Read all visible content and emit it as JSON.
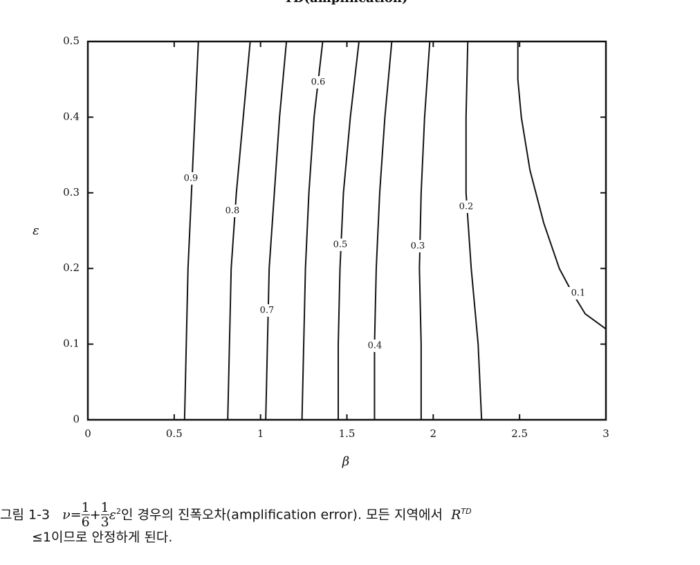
{
  "chart_data": {
    "type": "contour",
    "title": "TD(amplification)",
    "xlabel": "β",
    "ylabel": "ε",
    "xlim": [
      0,
      3
    ],
    "xticks": [
      0,
      0.5,
      1,
      1.5,
      2,
      2.5,
      3
    ],
    "ylim": [
      0,
      0.5
    ],
    "yticks": [
      0,
      0.1,
      0.2,
      0.3,
      0.4,
      0.5
    ],
    "color": "#111111",
    "series": [
      {
        "level": 0.9,
        "x": [
          0.56,
          0.57,
          0.58,
          0.6,
          0.62,
          0.64
        ],
        "y": [
          0,
          0.1,
          0.2,
          0.3,
          0.4,
          0.5
        ]
      },
      {
        "level": 0.8,
        "x": [
          0.81,
          0.82,
          0.83,
          0.86,
          0.9,
          0.94
        ],
        "y": [
          0,
          0.1,
          0.2,
          0.3,
          0.4,
          0.5
        ]
      },
      {
        "level": 0.7,
        "x": [
          1.03,
          1.04,
          1.05,
          1.08,
          1.11,
          1.15
        ],
        "y": [
          0,
          0.1,
          0.2,
          0.3,
          0.4,
          0.5
        ]
      },
      {
        "level": 0.6,
        "x": [
          1.24,
          1.25,
          1.26,
          1.28,
          1.31,
          1.36
        ],
        "y": [
          0,
          0.1,
          0.2,
          0.3,
          0.4,
          0.5
        ]
      },
      {
        "level": 0.5,
        "x": [
          1.45,
          1.45,
          1.46,
          1.48,
          1.52,
          1.57
        ],
        "y": [
          0,
          0.1,
          0.2,
          0.3,
          0.4,
          0.5
        ]
      },
      {
        "level": 0.4,
        "x": [
          1.66,
          1.66,
          1.67,
          1.69,
          1.72,
          1.76
        ],
        "y": [
          0,
          0.1,
          0.2,
          0.3,
          0.4,
          0.5
        ]
      },
      {
        "level": 0.3,
        "x": [
          1.93,
          1.93,
          1.92,
          1.93,
          1.95,
          1.98
        ],
        "y": [
          0,
          0.1,
          0.2,
          0.3,
          0.4,
          0.5
        ]
      },
      {
        "level": 0.2,
        "x": [
          2.28,
          2.26,
          2.22,
          2.19,
          2.19,
          2.2
        ],
        "y": [
          0,
          0.1,
          0.2,
          0.3,
          0.4,
          0.5
        ]
      },
      {
        "level": 0.1,
        "x": [
          2.49,
          2.49,
          2.51,
          2.56,
          2.64,
          2.73,
          2.8,
          2.88,
          3.0
        ],
        "y": [
          0.5,
          0.45,
          0.4,
          0.33,
          0.26,
          0.2,
          0.17,
          0.14,
          0.12
        ]
      }
    ]
  },
  "caption": {
    "figure": "그림 1-3",
    "nu": "ν=",
    "num1": "1",
    "den1": "6",
    "plus": "+",
    "num2": "1",
    "den2": "3",
    "eps": "ε",
    "sup": "2",
    "text1": "인 경우의 진폭오차(amplification error). 모든 지역에서",
    "r": "R",
    "rsup": "TD",
    "line2": "≤1이므로 안정하게 된다."
  }
}
